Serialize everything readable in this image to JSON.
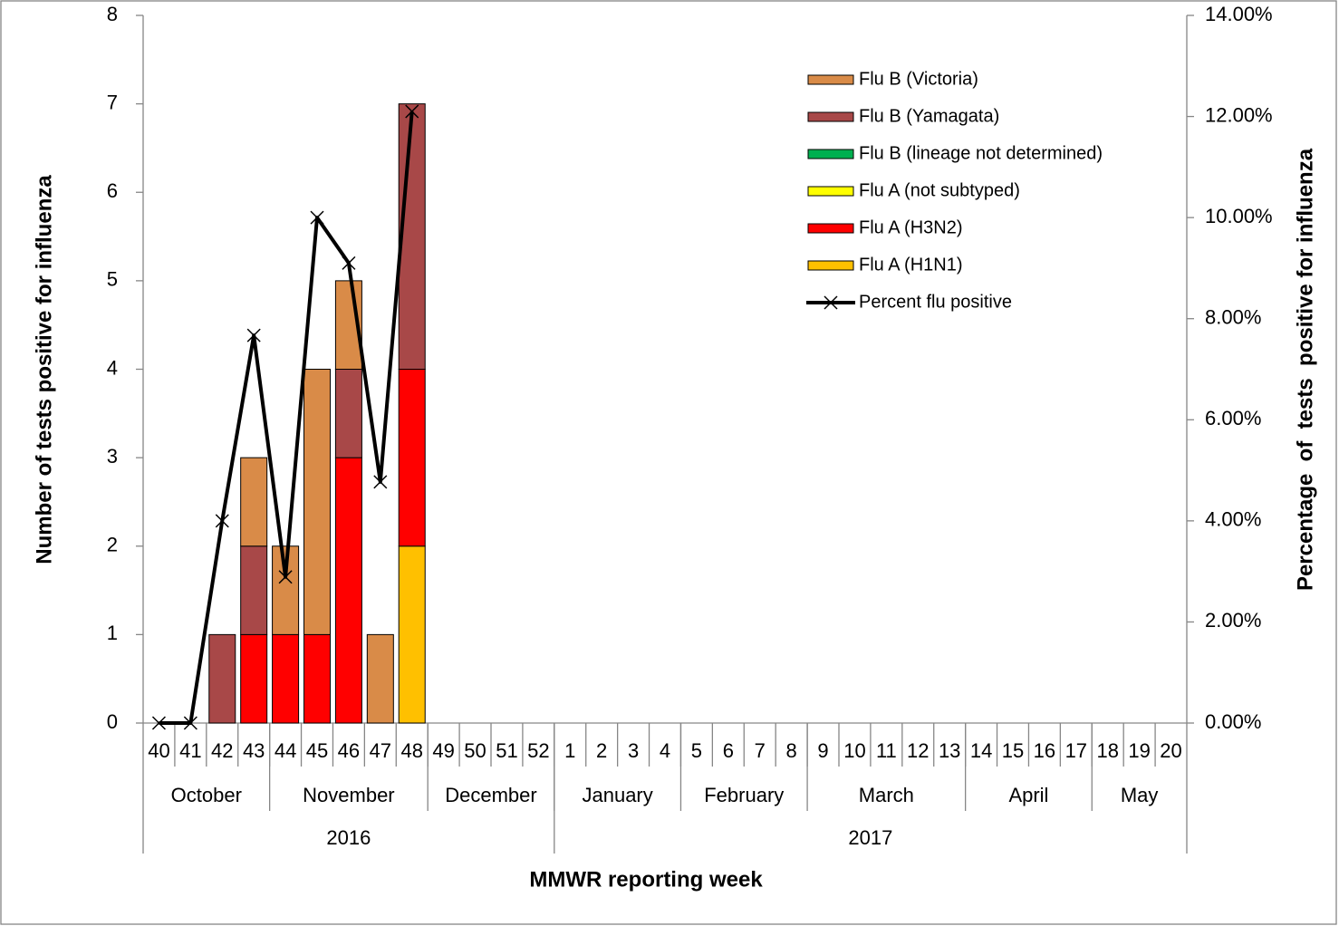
{
  "chart_data": {
    "type": "bar",
    "x_label": "MMWR reporting week",
    "y_label": "Number of tests positive for influenza",
    "y2_label": "Percentage  of  tests  positive for influenza",
    "categories": [
      "40",
      "41",
      "42",
      "43",
      "44",
      "45",
      "46",
      "47",
      "48",
      "49",
      "50",
      "51",
      "52",
      "1",
      "2",
      "3",
      "4",
      "5",
      "6",
      "7",
      "8",
      "9",
      "10",
      "11",
      "12",
      "13",
      "14",
      "15",
      "16",
      "17",
      "18",
      "19",
      "20"
    ],
    "month_groups": [
      {
        "label": "October",
        "count": 4
      },
      {
        "label": "November",
        "count": 5
      },
      {
        "label": "December",
        "count": 4
      },
      {
        "label": "January",
        "count": 4
      },
      {
        "label": "February",
        "count": 4
      },
      {
        "label": "March",
        "count": 5
      },
      {
        "label": "April",
        "count": 4
      },
      {
        "label": "May",
        "count": 3
      }
    ],
    "year_groups": [
      {
        "label": "2016",
        "count": 13
      },
      {
        "label": "2017",
        "count": 20
      }
    ],
    "series": [
      {
        "name": "Flu B (Victoria)",
        "color": "#d98b48",
        "values": [
          0,
          0,
          0,
          1,
          1,
          3,
          1,
          1,
          0,
          null,
          null,
          null,
          null,
          null,
          null,
          null,
          null,
          null,
          null,
          null,
          null,
          null,
          null,
          null,
          null,
          null,
          null,
          null,
          null,
          null,
          null,
          null,
          null
        ]
      },
      {
        "name": "Flu B (Yamagata)",
        "color": "#a84848",
        "values": [
          0,
          0,
          1,
          1,
          0,
          0,
          1,
          0,
          3,
          null,
          null,
          null,
          null,
          null,
          null,
          null,
          null,
          null,
          null,
          null,
          null,
          null,
          null,
          null,
          null,
          null,
          null,
          null,
          null,
          null,
          null,
          null,
          null
        ]
      },
      {
        "name": "Flu B (lineage not determined)",
        "color": "#00b050",
        "values": [
          0,
          0,
          0,
          0,
          0,
          0,
          0,
          0,
          0,
          null,
          null,
          null,
          null,
          null,
          null,
          null,
          null,
          null,
          null,
          null,
          null,
          null,
          null,
          null,
          null,
          null,
          null,
          null,
          null,
          null,
          null,
          null,
          null
        ]
      },
      {
        "name": "Flu A (not subtyped)",
        "color": "#ffff00",
        "values": [
          0,
          0,
          0,
          0,
          0,
          0,
          0,
          0,
          0,
          null,
          null,
          null,
          null,
          null,
          null,
          null,
          null,
          null,
          null,
          null,
          null,
          null,
          null,
          null,
          null,
          null,
          null,
          null,
          null,
          null,
          null,
          null,
          null
        ]
      },
      {
        "name": "Flu A (H3N2)",
        "color": "#ff0000",
        "values": [
          0,
          0,
          0,
          1,
          1,
          1,
          3,
          0,
          2,
          null,
          null,
          null,
          null,
          null,
          null,
          null,
          null,
          null,
          null,
          null,
          null,
          null,
          null,
          null,
          null,
          null,
          null,
          null,
          null,
          null,
          null,
          null,
          null
        ]
      },
      {
        "name": "Flu A (H1N1)",
        "color": "#ffc000",
        "values": [
          0,
          0,
          0,
          0,
          0,
          0,
          0,
          0,
          2,
          null,
          null,
          null,
          null,
          null,
          null,
          null,
          null,
          null,
          null,
          null,
          null,
          null,
          null,
          null,
          null,
          null,
          null,
          null,
          null,
          null,
          null,
          null,
          null
        ]
      },
      {
        "name": "Percent flu positive",
        "type": "line",
        "axis": "y2",
        "color": "#000000",
        "values": [
          0,
          0,
          4.0,
          7.67,
          2.89,
          10.0,
          9.1,
          4.77,
          12.1,
          null,
          null,
          null,
          null,
          null,
          null,
          null,
          null,
          null,
          null,
          null,
          null,
          null,
          null,
          null,
          null,
          null,
          null,
          null,
          null,
          null,
          null,
          null,
          null
        ]
      }
    ],
    "ylim": [
      0,
      8
    ],
    "yticks": [
      0,
      1,
      2,
      3,
      4,
      5,
      6,
      7,
      8
    ],
    "y2lim": [
      0,
      14
    ],
    "y2ticks": [
      {
        "value": 0,
        "label": "0.00%"
      },
      {
        "value": 2,
        "label": "2.00%"
      },
      {
        "value": 4,
        "label": "4.00%"
      },
      {
        "value": 6,
        "label": "6.00%"
      },
      {
        "value": 8,
        "label": "8.00%"
      },
      {
        "value": 10,
        "label": "10.00%"
      },
      {
        "value": 12,
        "label": "12.00%"
      },
      {
        "value": 14,
        "label": "14.00%"
      }
    ],
    "grid": false,
    "legend": "upper right"
  }
}
